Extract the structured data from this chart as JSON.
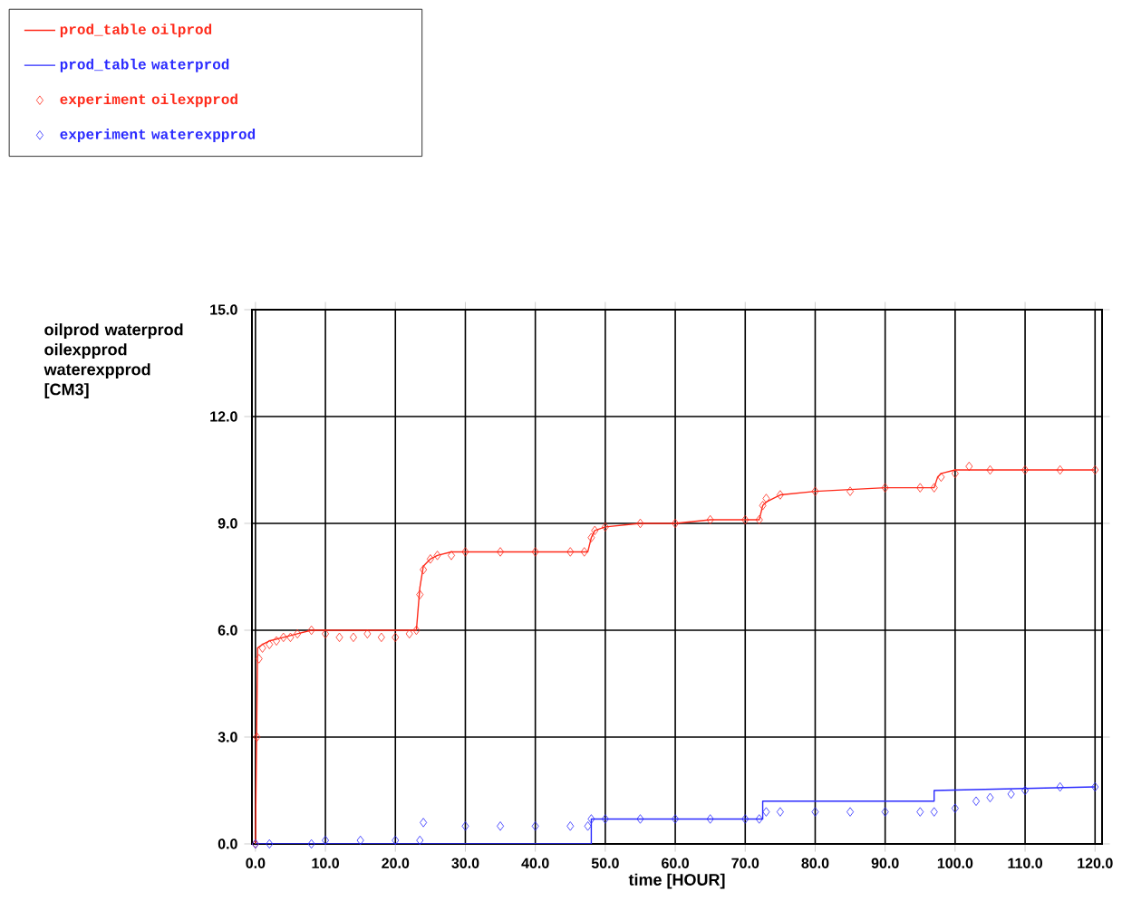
{
  "chart_data": {
    "type": "line",
    "xlabel": "time [HOUR]",
    "ylabel": "oilprod waterprod oilexpprod waterexpprod [CM3]",
    "xlim": [
      -0.5,
      121
    ],
    "ylim": [
      0,
      15
    ],
    "xticks": [
      {
        "value": 0,
        "label": "0.0"
      },
      {
        "value": 10,
        "label": "10.0"
      },
      {
        "value": 20,
        "label": "20.0"
      },
      {
        "value": 30,
        "label": "30.0"
      },
      {
        "value": 40,
        "label": "40.0"
      },
      {
        "value": 50,
        "label": "50.0"
      },
      {
        "value": 60,
        "label": "60.0"
      },
      {
        "value": 70,
        "label": "70.0"
      },
      {
        "value": 80,
        "label": "80.0"
      },
      {
        "value": 90,
        "label": "90.0"
      },
      {
        "value": 100,
        "label": "100.0"
      },
      {
        "value": 110,
        "label": "110.0"
      },
      {
        "value": 120,
        "label": "120.0"
      }
    ],
    "yticks": [
      {
        "value": 0,
        "label": "0.0"
      },
      {
        "value": 3,
        "label": "3.0"
      },
      {
        "value": 6,
        "label": "6.0"
      },
      {
        "value": 9,
        "label": "9.0"
      },
      {
        "value": 12,
        "label": "12.0"
      },
      {
        "value": 15,
        "label": "15.0"
      }
    ],
    "grid": true,
    "legend": "top left",
    "series": [
      {
        "name": "prod_table oilprod",
        "color": "#ff2a1a",
        "type": "line",
        "line_style": "solid",
        "x": [
          0,
          0.3,
          1,
          2,
          4,
          6,
          8,
          12,
          16,
          20,
          23,
          23.5,
          24,
          25,
          26,
          28,
          32,
          40,
          47.5,
          48,
          48.5,
          50,
          55,
          60,
          65,
          72,
          72.5,
          73,
          75,
          80,
          90,
          97,
          97.5,
          98,
          100,
          110,
          120
        ],
        "values": [
          0,
          5.5,
          5.6,
          5.7,
          5.8,
          5.9,
          6.0,
          6.0,
          6.0,
          6.0,
          6.0,
          7.2,
          7.8,
          8.0,
          8.1,
          8.2,
          8.2,
          8.2,
          8.2,
          8.6,
          8.8,
          8.9,
          9.0,
          9.0,
          9.1,
          9.1,
          9.5,
          9.6,
          9.8,
          9.9,
          10.0,
          10.0,
          10.3,
          10.4,
          10.5,
          10.5,
          10.5
        ]
      },
      {
        "name": "prod_table waterprod",
        "color": "#2a2aff",
        "type": "line",
        "line_style": "solid",
        "x": [
          0,
          48,
          48,
          72.5,
          72.5,
          97,
          97,
          120
        ],
        "values": [
          0,
          0,
          0.7,
          0.7,
          1.2,
          1.2,
          1.5,
          1.6
        ]
      },
      {
        "name": "experiment oilexpprod",
        "color": "#ff2a1a",
        "type": "scatter",
        "marker": "diamond",
        "x": [
          0,
          0.2,
          0.5,
          1,
          2,
          3,
          4,
          5,
          6,
          8,
          10,
          12,
          14,
          16,
          18,
          20,
          22,
          23,
          23.5,
          24,
          25,
          26,
          28,
          30,
          35,
          40,
          45,
          47,
          48,
          48.5,
          50,
          55,
          60,
          65,
          70,
          72,
          72.5,
          73,
          75,
          80,
          85,
          90,
          95,
          97,
          98,
          100,
          102,
          105,
          110,
          115,
          120
        ],
        "values": [
          0,
          3.0,
          5.2,
          5.5,
          5.6,
          5.7,
          5.8,
          5.8,
          5.9,
          6.0,
          5.9,
          5.8,
          5.8,
          5.9,
          5.8,
          5.8,
          5.9,
          6.0,
          7.0,
          7.7,
          8.0,
          8.1,
          8.1,
          8.2,
          8.2,
          8.2,
          8.2,
          8.2,
          8.6,
          8.8,
          8.9,
          9.0,
          9.0,
          9.1,
          9.1,
          9.1,
          9.5,
          9.7,
          9.8,
          9.9,
          9.9,
          10.0,
          10.0,
          10.0,
          10.3,
          10.4,
          10.6,
          10.5,
          10.5,
          10.5,
          10.5
        ]
      },
      {
        "name": "experiment waterexpprod",
        "color": "#2a2aff",
        "type": "scatter",
        "marker": "diamond",
        "x": [
          0,
          2,
          8,
          10,
          15,
          20,
          23.5,
          24,
          30,
          35,
          40,
          45,
          47.5,
          48,
          50,
          55,
          60,
          65,
          70,
          72,
          73,
          75,
          80,
          85,
          90,
          95,
          97,
          100,
          103,
          105,
          108,
          110,
          115,
          120
        ],
        "values": [
          0,
          0,
          0,
          0.1,
          0.1,
          0.1,
          0.1,
          0.6,
          0.5,
          0.5,
          0.5,
          0.5,
          0.5,
          0.7,
          0.7,
          0.7,
          0.7,
          0.7,
          0.7,
          0.7,
          0.9,
          0.9,
          0.9,
          0.9,
          0.9,
          0.9,
          0.9,
          1.0,
          1.2,
          1.3,
          1.4,
          1.5,
          1.6,
          1.6
        ]
      }
    ]
  }
}
